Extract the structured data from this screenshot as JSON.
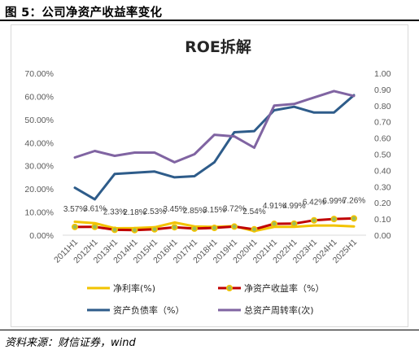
{
  "figure": {
    "title": "图 5：公司净资产收益率变化",
    "source": "资料来源：财信证券，wind"
  },
  "chart_data": {
    "type": "line",
    "title": "ROE拆解",
    "categories": [
      "2011H1",
      "2012H1",
      "2013H1",
      "2014H1",
      "2015H1",
      "2016H1",
      "2017H1",
      "2018H1",
      "2019H1",
      "2020H1",
      "2021H1",
      "2022H1",
      "2023H1",
      "2024H1",
      "2025H1"
    ],
    "y_left": {
      "min": 0,
      "max": 70,
      "step": 10,
      "ticks": [
        "0.00%",
        "10.00%",
        "20.00%",
        "30.00%",
        "40.00%",
        "50.00%",
        "60.00%",
        "70.00%"
      ]
    },
    "y_right": {
      "min": 0,
      "max": 1,
      "step": 0.1,
      "ticks": [
        "0.00",
        "0.10",
        "0.20",
        "0.30",
        "0.40",
        "0.50",
        "0.60",
        "0.70",
        "0.80",
        "0.90",
        "1.00"
      ]
    },
    "series": [
      {
        "name": "净利率(%)",
        "axis": "left",
        "color": "#f2c300",
        "marker": false,
        "values": [
          5.8,
          5.2,
          3.0,
          3.1,
          3.4,
          5.5,
          3.8,
          3.6,
          3.9,
          1.8,
          3.6,
          3.6,
          4.2,
          4.2,
          3.8
        ]
      },
      {
        "name": "净资产收益率（%）",
        "axis": "left",
        "color": "#c00000",
        "marker": true,
        "values": [
          3.57,
          3.61,
          2.33,
          2.18,
          2.53,
          3.45,
          2.85,
          3.15,
          3.72,
          2.54,
          4.91,
          4.99,
          6.42,
          6.99,
          7.26
        ],
        "labels": [
          "3.57%",
          "3.61%",
          "2.33%",
          "2.18%",
          "2.53%",
          "3.45%",
          "2.85%",
          "3.15%",
          "3.72%",
          "2.54%",
          "4.91%",
          "4.99%",
          "6.42%",
          "6.99%",
          "7.26%"
        ]
      },
      {
        "name": "资产负债率（%）",
        "axis": "left",
        "color": "#2e5c8a",
        "marker": false,
        "values": [
          20.5,
          15.5,
          26.5,
          27.0,
          27.5,
          25.0,
          25.5,
          31.5,
          44.5,
          45.0,
          54.0,
          55.5,
          53.0,
          53.0,
          60.5
        ]
      },
      {
        "name": "总资产周转率(次)",
        "axis": "right",
        "color": "#8064a2",
        "marker": false,
        "values": [
          0.48,
          0.52,
          0.49,
          0.51,
          0.51,
          0.45,
          0.5,
          0.62,
          0.61,
          0.54,
          0.8,
          0.81,
          0.85,
          0.89,
          0.86
        ]
      }
    ],
    "legend": "bottom",
    "grid": false
  }
}
